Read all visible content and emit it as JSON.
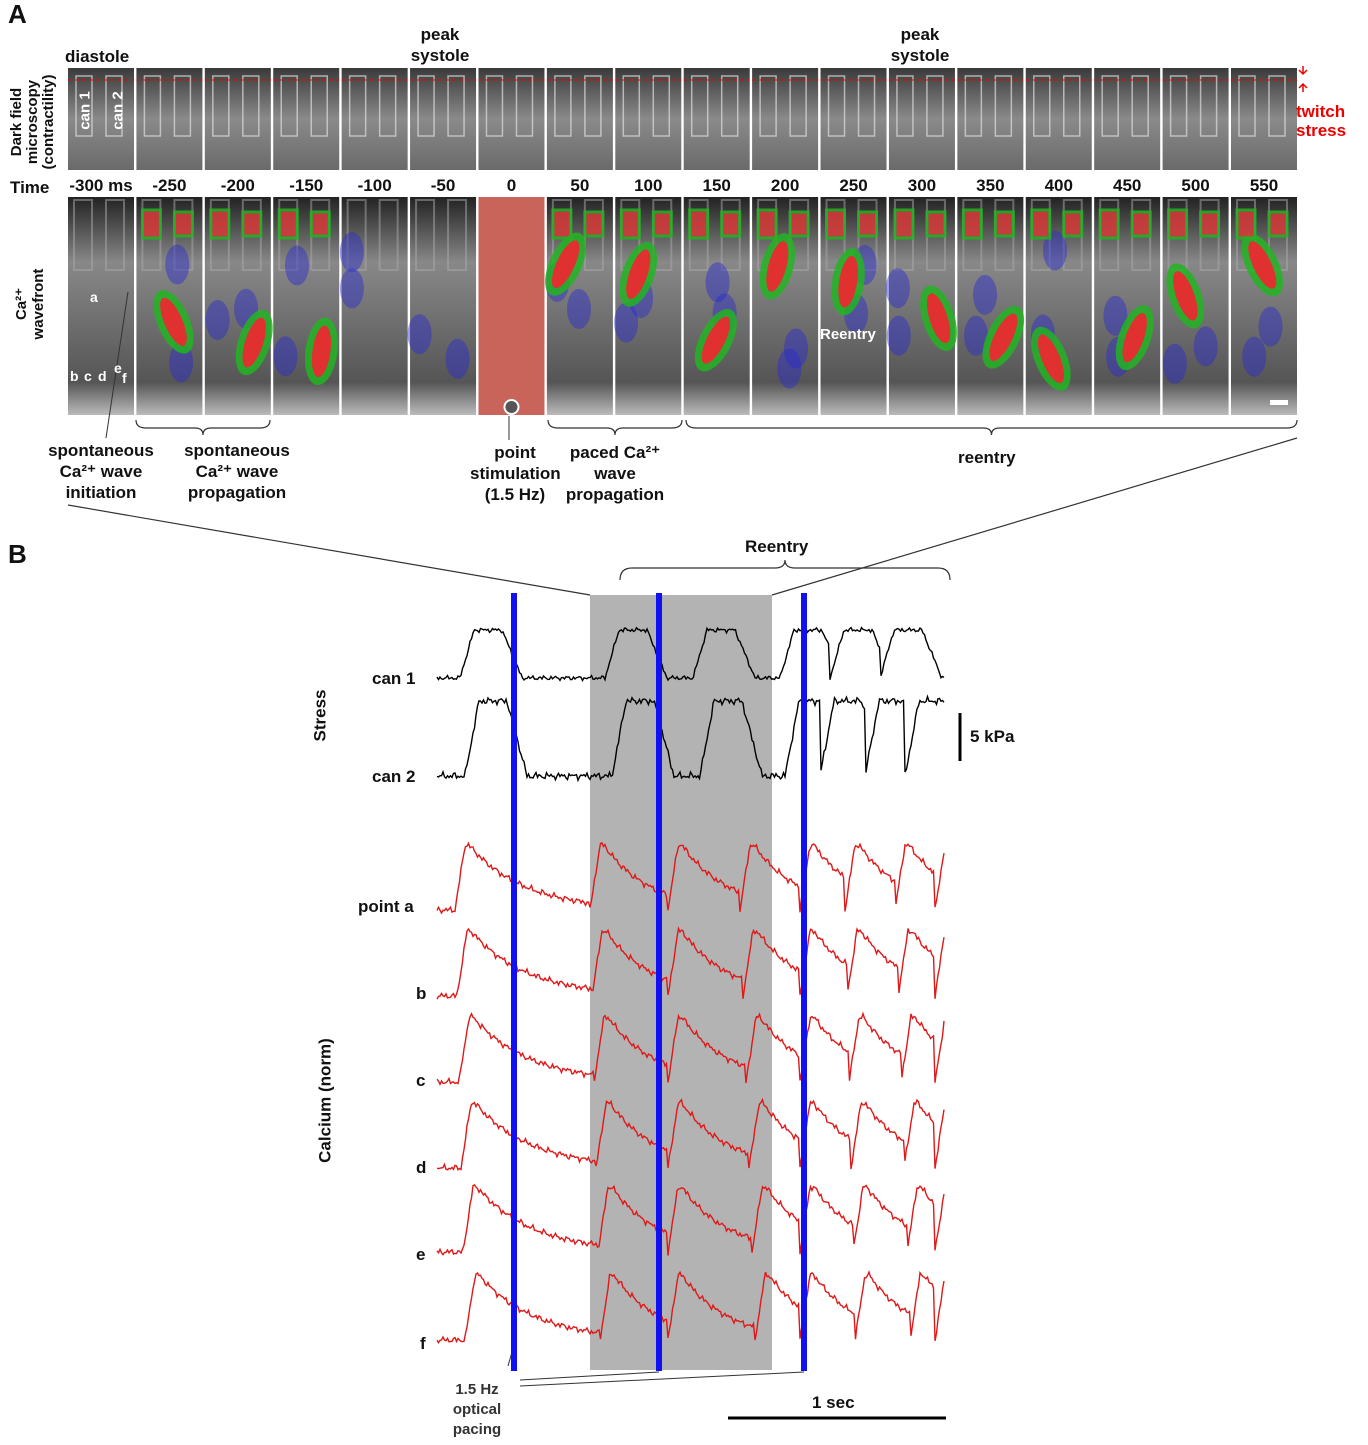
{
  "panel_a": {
    "label": "A",
    "phase_labels": {
      "diastole": "diastole",
      "peak_systole_1": "peak systole",
      "peak_systole_2": "peak systole"
    },
    "row1_label": "Dark field microscopy (contractility)",
    "can_labels": [
      "can 1",
      "can 2"
    ],
    "twitch_stress": "twitch stress",
    "time_label": "Time",
    "times": [
      "-300 ms",
      -250,
      -200,
      -150,
      -100,
      -50,
      0,
      50,
      100,
      150,
      200,
      250,
      300,
      350,
      400,
      450,
      500,
      550
    ],
    "row2_label": "Ca²⁺ wavefront",
    "points": [
      "a",
      "b",
      "c",
      "d",
      "e",
      "f"
    ],
    "reentry_in_image": "Reentry",
    "annotations": {
      "initiation": "spontaneous Ca²⁺ wave initiation",
      "spont_propagation": "spontaneous Ca²⁺ wave propagation",
      "stimulation": "point stimulation (1.5 Hz)",
      "paced_propagation": "paced Ca²⁺ wave propagation",
      "reentry": "reentry"
    }
  },
  "panel_b": {
    "label": "B",
    "reentry": "Reentry",
    "stress_label": "Stress",
    "stress_traces": [
      "can 1",
      "can 2"
    ],
    "stress_scale": "5 kPa",
    "calcium_label": "Calcium (norm)",
    "calcium_traces": [
      "point a",
      "b",
      "c",
      "d",
      "e",
      "f"
    ],
    "pacing_label": "1.5 Hz optical pacing",
    "time_scale": "1 sec"
  }
}
